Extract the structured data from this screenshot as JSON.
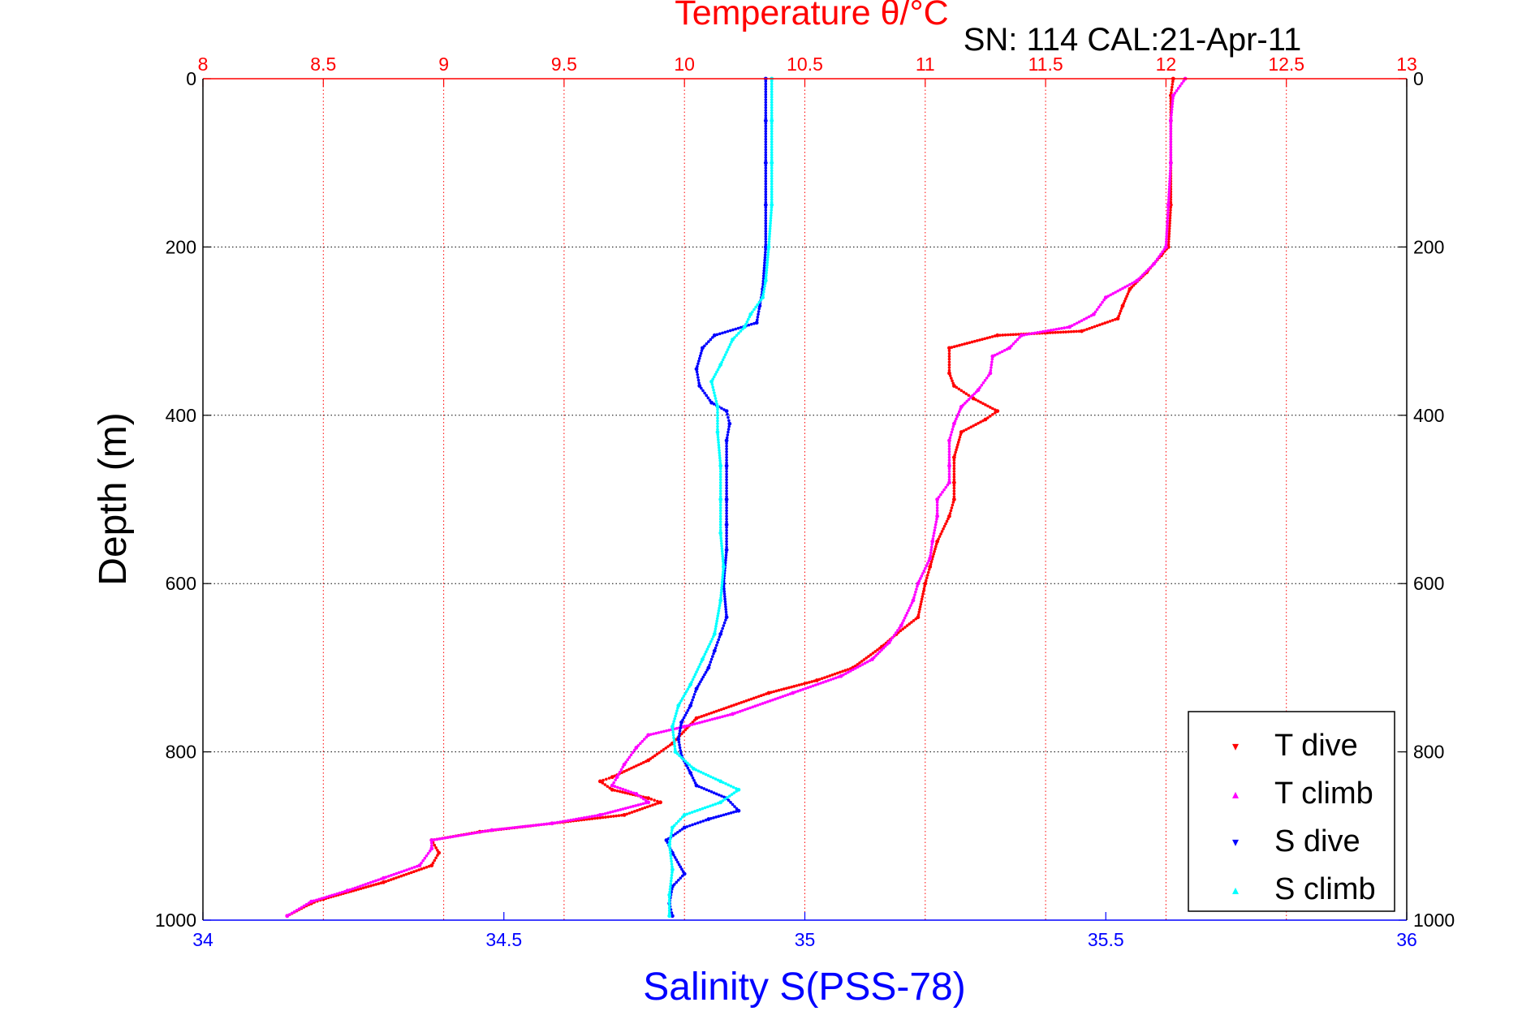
{
  "header": {
    "top_title": "Temperature θ/°C",
    "serial_label": "SN: 114  CAL:21-Apr-11"
  },
  "colors": {
    "temperature_axis": "#ff0000",
    "salinity_axis": "#0000ff",
    "t_dive": "#ff0000",
    "t_climb": "#ff00ff",
    "s_dive": "#0000ff",
    "s_climb": "#00ffff",
    "grid": "#000000"
  },
  "chart_data": {
    "type": "scatter",
    "title": "Temperature θ/°C",
    "subtitle": "SN: 114  CAL:21-Apr-11",
    "ylabel": "Depth (m)",
    "xlabel": "Salinity S(PSS-78)",
    "top_xlabel": "Temperature θ/°C",
    "ylim": [
      0,
      1000
    ],
    "y_reversed": true,
    "y_ticks": [
      0,
      200,
      400,
      600,
      800,
      1000
    ],
    "temperature_lim": [
      8,
      13
    ],
    "temperature_ticks": [
      "8",
      "8.5",
      "9",
      "9.5",
      "10",
      "10.5",
      "11",
      "11.5",
      "12",
      "12.5",
      "13"
    ],
    "salinity_lim": [
      34,
      36
    ],
    "salinity_ticks": [
      "34",
      "34.5",
      "35",
      "35.5",
      "36"
    ],
    "grid": true,
    "legend_position": "bottom-right",
    "series": [
      {
        "name": "T dive",
        "axis": "temperature",
        "color": "#ff0000",
        "points": [
          [
            12.03,
            0
          ],
          [
            12.02,
            20
          ],
          [
            12.02,
            50
          ],
          [
            12.02,
            100
          ],
          [
            12.02,
            150
          ],
          [
            12.01,
            200
          ],
          [
            11.98,
            210
          ],
          [
            11.92,
            230
          ],
          [
            11.85,
            250
          ],
          [
            11.82,
            270
          ],
          [
            11.8,
            285
          ],
          [
            11.65,
            300
          ],
          [
            11.3,
            305
          ],
          [
            11.1,
            320
          ],
          [
            11.1,
            350
          ],
          [
            11.12,
            365
          ],
          [
            11.2,
            380
          ],
          [
            11.3,
            395
          ],
          [
            11.25,
            405
          ],
          [
            11.15,
            420
          ],
          [
            11.12,
            450
          ],
          [
            11.12,
            480
          ],
          [
            11.12,
            500
          ],
          [
            11.1,
            520
          ],
          [
            11.05,
            550
          ],
          [
            11.02,
            580
          ],
          [
            11.0,
            600
          ],
          [
            10.97,
            640
          ],
          [
            10.88,
            660
          ],
          [
            10.82,
            675
          ],
          [
            10.7,
            700
          ],
          [
            10.55,
            715
          ],
          [
            10.35,
            730
          ],
          [
            10.05,
            760
          ],
          [
            9.95,
            790
          ],
          [
            9.85,
            810
          ],
          [
            9.7,
            830
          ],
          [
            9.65,
            835
          ],
          [
            9.7,
            845
          ],
          [
            9.85,
            855
          ],
          [
            9.9,
            860
          ],
          [
            9.75,
            875
          ],
          [
            9.45,
            885
          ],
          [
            9.15,
            895
          ],
          [
            8.95,
            905
          ],
          [
            8.98,
            920
          ],
          [
            8.95,
            935
          ],
          [
            8.75,
            955
          ],
          [
            8.5,
            975
          ],
          [
            8.45,
            980
          ],
          [
            8.35,
            995
          ]
        ]
      },
      {
        "name": "T climb",
        "axis": "temperature",
        "color": "#ff00ff",
        "points": [
          [
            12.08,
            0
          ],
          [
            12.03,
            20
          ],
          [
            12.02,
            50
          ],
          [
            12.02,
            100
          ],
          [
            12.01,
            150
          ],
          [
            12.0,
            200
          ],
          [
            11.95,
            220
          ],
          [
            11.88,
            240
          ],
          [
            11.75,
            260
          ],
          [
            11.7,
            280
          ],
          [
            11.6,
            295
          ],
          [
            11.4,
            305
          ],
          [
            11.35,
            320
          ],
          [
            11.28,
            330
          ],
          [
            11.27,
            350
          ],
          [
            11.22,
            370
          ],
          [
            11.15,
            390
          ],
          [
            11.12,
            410
          ],
          [
            11.1,
            430
          ],
          [
            11.1,
            460
          ],
          [
            11.1,
            480
          ],
          [
            11.05,
            500
          ],
          [
            11.05,
            520
          ],
          [
            11.03,
            550
          ],
          [
            11.02,
            570
          ],
          [
            10.97,
            600
          ],
          [
            10.95,
            620
          ],
          [
            10.9,
            650
          ],
          [
            10.85,
            670
          ],
          [
            10.78,
            690
          ],
          [
            10.65,
            710
          ],
          [
            10.45,
            730
          ],
          [
            10.2,
            755
          ],
          [
            10.0,
            770
          ],
          [
            9.85,
            780
          ],
          [
            9.8,
            795
          ],
          [
            9.75,
            815
          ],
          [
            9.72,
            830
          ],
          [
            9.7,
            840
          ],
          [
            9.8,
            850
          ],
          [
            9.85,
            860
          ],
          [
            9.65,
            875
          ],
          [
            9.45,
            885
          ],
          [
            9.2,
            893
          ],
          [
            8.95,
            905
          ],
          [
            8.95,
            915
          ],
          [
            8.9,
            935
          ],
          [
            8.75,
            950
          ],
          [
            8.6,
            965
          ],
          [
            8.45,
            978
          ],
          [
            8.35,
            995
          ]
        ]
      },
      {
        "name": "S dive",
        "axis": "salinity",
        "color": "#0000ff",
        "points": [
          [
            34.935,
            0
          ],
          [
            34.935,
            50
          ],
          [
            34.935,
            100
          ],
          [
            34.935,
            150
          ],
          [
            34.935,
            200
          ],
          [
            34.93,
            250
          ],
          [
            34.925,
            270
          ],
          [
            34.92,
            290
          ],
          [
            34.85,
            305
          ],
          [
            34.83,
            320
          ],
          [
            34.82,
            345
          ],
          [
            34.825,
            365
          ],
          [
            34.845,
            385
          ],
          [
            34.87,
            395
          ],
          [
            34.875,
            410
          ],
          [
            34.87,
            430
          ],
          [
            34.87,
            460
          ],
          [
            34.87,
            500
          ],
          [
            34.87,
            530
          ],
          [
            34.87,
            560
          ],
          [
            34.865,
            600
          ],
          [
            34.87,
            640
          ],
          [
            34.86,
            660
          ],
          [
            34.85,
            680
          ],
          [
            34.84,
            700
          ],
          [
            34.82,
            725
          ],
          [
            34.81,
            745
          ],
          [
            34.795,
            765
          ],
          [
            34.79,
            785
          ],
          [
            34.795,
            805
          ],
          [
            34.81,
            825
          ],
          [
            34.82,
            840
          ],
          [
            34.87,
            855
          ],
          [
            34.89,
            870
          ],
          [
            34.84,
            880
          ],
          [
            34.8,
            890
          ],
          [
            34.77,
            905
          ],
          [
            34.78,
            920
          ],
          [
            34.8,
            945
          ],
          [
            34.78,
            960
          ],
          [
            34.775,
            980
          ],
          [
            34.78,
            995
          ]
        ]
      },
      {
        "name": "S climb",
        "axis": "salinity",
        "color": "#00ffff",
        "points": [
          [
            34.945,
            0
          ],
          [
            34.945,
            50
          ],
          [
            34.945,
            100
          ],
          [
            34.945,
            150
          ],
          [
            34.94,
            200
          ],
          [
            34.935,
            240
          ],
          [
            34.93,
            260
          ],
          [
            34.91,
            280
          ],
          [
            34.9,
            295
          ],
          [
            34.88,
            310
          ],
          [
            34.86,
            340
          ],
          [
            34.845,
            360
          ],
          [
            34.855,
            390
          ],
          [
            34.855,
            420
          ],
          [
            34.86,
            460
          ],
          [
            34.86,
            500
          ],
          [
            34.86,
            540
          ],
          [
            34.865,
            580
          ],
          [
            34.86,
            620
          ],
          [
            34.85,
            660
          ],
          [
            34.83,
            690
          ],
          [
            34.81,
            720
          ],
          [
            34.79,
            745
          ],
          [
            34.78,
            770
          ],
          [
            34.785,
            800
          ],
          [
            34.815,
            820
          ],
          [
            34.86,
            835
          ],
          [
            34.89,
            845
          ],
          [
            34.86,
            860
          ],
          [
            34.8,
            875
          ],
          [
            34.78,
            890
          ],
          [
            34.775,
            910
          ],
          [
            34.78,
            940
          ],
          [
            34.775,
            970
          ],
          [
            34.775,
            995
          ]
        ]
      }
    ]
  },
  "legend": {
    "items": [
      {
        "label": "T dive",
        "color": "#ff0000"
      },
      {
        "label": "T climb",
        "color": "#ff00ff"
      },
      {
        "label": "S dive",
        "color": "#0000ff"
      },
      {
        "label": "S climb",
        "color": "#00ffff"
      }
    ]
  }
}
